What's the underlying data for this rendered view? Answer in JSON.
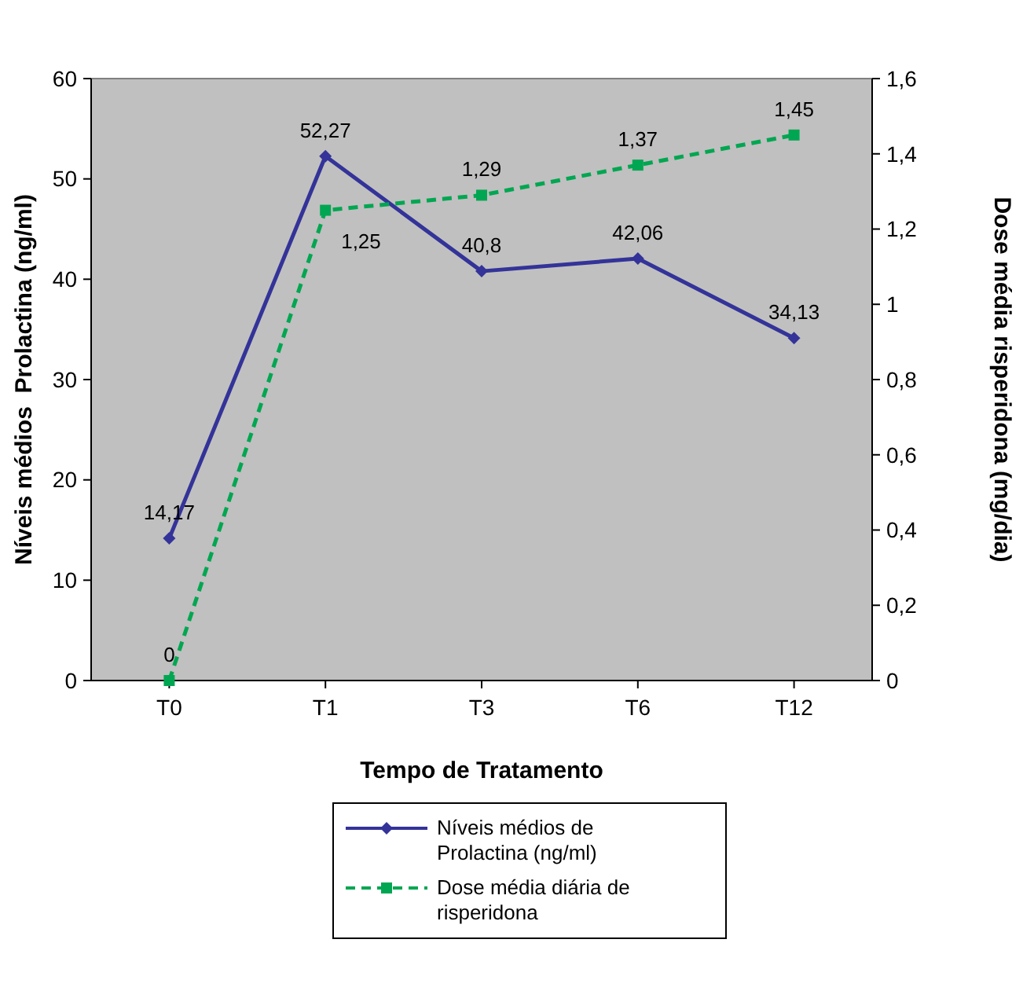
{
  "chart_data": {
    "type": "line",
    "xlabel": "Tempo de Tratamento",
    "ylabel": "Níveis médios  Prolactina (ng/ml)",
    "y2label": "Dose média risperidona (mg/dia)",
    "categories": [
      "T0",
      "T1",
      "T3",
      "T6",
      "T12"
    ],
    "series": [
      {
        "name": "Níveis médios de Prolactina (ng/ml)",
        "color": "#333399",
        "marker": "diamond",
        "line_style": "solid",
        "values": [
          14.17,
          52.27,
          40.8,
          42.06,
          34.13
        ],
        "value_labels": [
          "14,17",
          "52,27",
          "40,8",
          "42,06",
          "34,13"
        ]
      },
      {
        "name": "Dose média diária de risperidona",
        "color": "#00a651",
        "marker": "square",
        "line_style": "dashed",
        "axis": "y2",
        "values": [
          0,
          1.25,
          1.29,
          1.37,
          1.45
        ],
        "value_labels": [
          "0",
          "1,25",
          "1,29",
          "1,37",
          "1,45"
        ]
      }
    ],
    "ylim": [
      0,
      60
    ],
    "yticks": [
      0,
      10,
      20,
      30,
      40,
      50,
      60
    ],
    "y2lim": [
      0,
      1.6
    ],
    "y2ticks": [
      0,
      {
        "value": 0.2,
        "label": "0,2"
      },
      {
        "value": 0.4,
        "label": "0,4"
      },
      {
        "value": 0.6,
        "label": "0,6"
      },
      {
        "value": 0.8,
        "label": "0,8"
      },
      1,
      {
        "value": 1.2,
        "label": "1,2"
      },
      {
        "value": 1.4,
        "label": "1,4"
      },
      {
        "value": 1.6,
        "label": "1,6"
      }
    ],
    "grid": false,
    "legend": "bottom"
  }
}
